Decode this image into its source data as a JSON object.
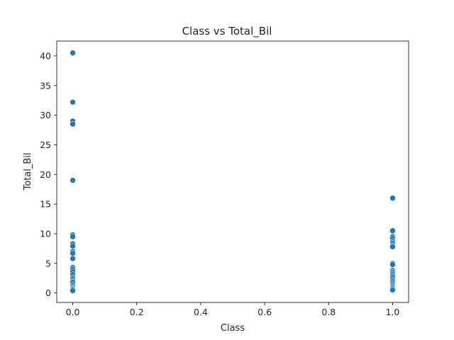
{
  "chart_data": {
    "type": "scatter",
    "title": "Class vs Total_Bil",
    "xlabel": "Class",
    "ylabel": "Total_Bil",
    "xlim": [
      -0.05,
      1.05
    ],
    "ylim": [
      -1.6,
      42.5
    ],
    "xticks": [
      0.0,
      0.2,
      0.4,
      0.6,
      0.8,
      1.0
    ],
    "xtick_labels": [
      "0.0",
      "0.2",
      "0.4",
      "0.6",
      "0.8",
      "1.0"
    ],
    "yticks": [
      0,
      5,
      10,
      15,
      20,
      25,
      30,
      35,
      40
    ],
    "ytick_labels": [
      "0",
      "5",
      "10",
      "15",
      "20",
      "25",
      "30",
      "35",
      "40"
    ],
    "grid": false,
    "marker_color": "#1f77b4",
    "points": [
      {
        "x": 0,
        "y": 40.5
      },
      {
        "x": 0,
        "y": 32.2
      },
      {
        "x": 0,
        "y": 29.0
      },
      {
        "x": 0,
        "y": 28.5
      },
      {
        "x": 0,
        "y": 19.0
      },
      {
        "x": 0,
        "y": 9.8
      },
      {
        "x": 0,
        "y": 9.5
      },
      {
        "x": 0,
        "y": 8.3
      },
      {
        "x": 0,
        "y": 7.9
      },
      {
        "x": 0,
        "y": 7.0
      },
      {
        "x": 0,
        "y": 6.7
      },
      {
        "x": 0,
        "y": 5.8
      },
      {
        "x": 0,
        "y": 4.3
      },
      {
        "x": 0,
        "y": 4.0
      },
      {
        "x": 0,
        "y": 3.6
      },
      {
        "x": 0,
        "y": 3.1
      },
      {
        "x": 0,
        "y": 2.6
      },
      {
        "x": 0,
        "y": 2.3
      },
      {
        "x": 0,
        "y": 2.0
      },
      {
        "x": 0,
        "y": 1.8
      },
      {
        "x": 0,
        "y": 1.3
      },
      {
        "x": 0,
        "y": 1.0
      },
      {
        "x": 0,
        "y": 0.8
      },
      {
        "x": 0,
        "y": 0.6
      },
      {
        "x": 0,
        "y": 0.4
      },
      {
        "x": 1,
        "y": 16.0
      },
      {
        "x": 1,
        "y": 10.5
      },
      {
        "x": 1,
        "y": 9.5
      },
      {
        "x": 1,
        "y": 9.2
      },
      {
        "x": 1,
        "y": 8.7
      },
      {
        "x": 1,
        "y": 8.4
      },
      {
        "x": 1,
        "y": 8.0
      },
      {
        "x": 1,
        "y": 7.8
      },
      {
        "x": 1,
        "y": 5.0
      },
      {
        "x": 1,
        "y": 4.8
      },
      {
        "x": 1,
        "y": 3.8
      },
      {
        "x": 1,
        "y": 3.5
      },
      {
        "x": 1,
        "y": 3.2
      },
      {
        "x": 1,
        "y": 2.9
      },
      {
        "x": 1,
        "y": 2.6
      },
      {
        "x": 1,
        "y": 2.2
      },
      {
        "x": 1,
        "y": 1.9
      },
      {
        "x": 1,
        "y": 1.6
      },
      {
        "x": 1,
        "y": 1.3
      },
      {
        "x": 1,
        "y": 1.1
      },
      {
        "x": 1,
        "y": 0.9
      },
      {
        "x": 1,
        "y": 0.7
      },
      {
        "x": 1,
        "y": 0.5
      }
    ]
  }
}
